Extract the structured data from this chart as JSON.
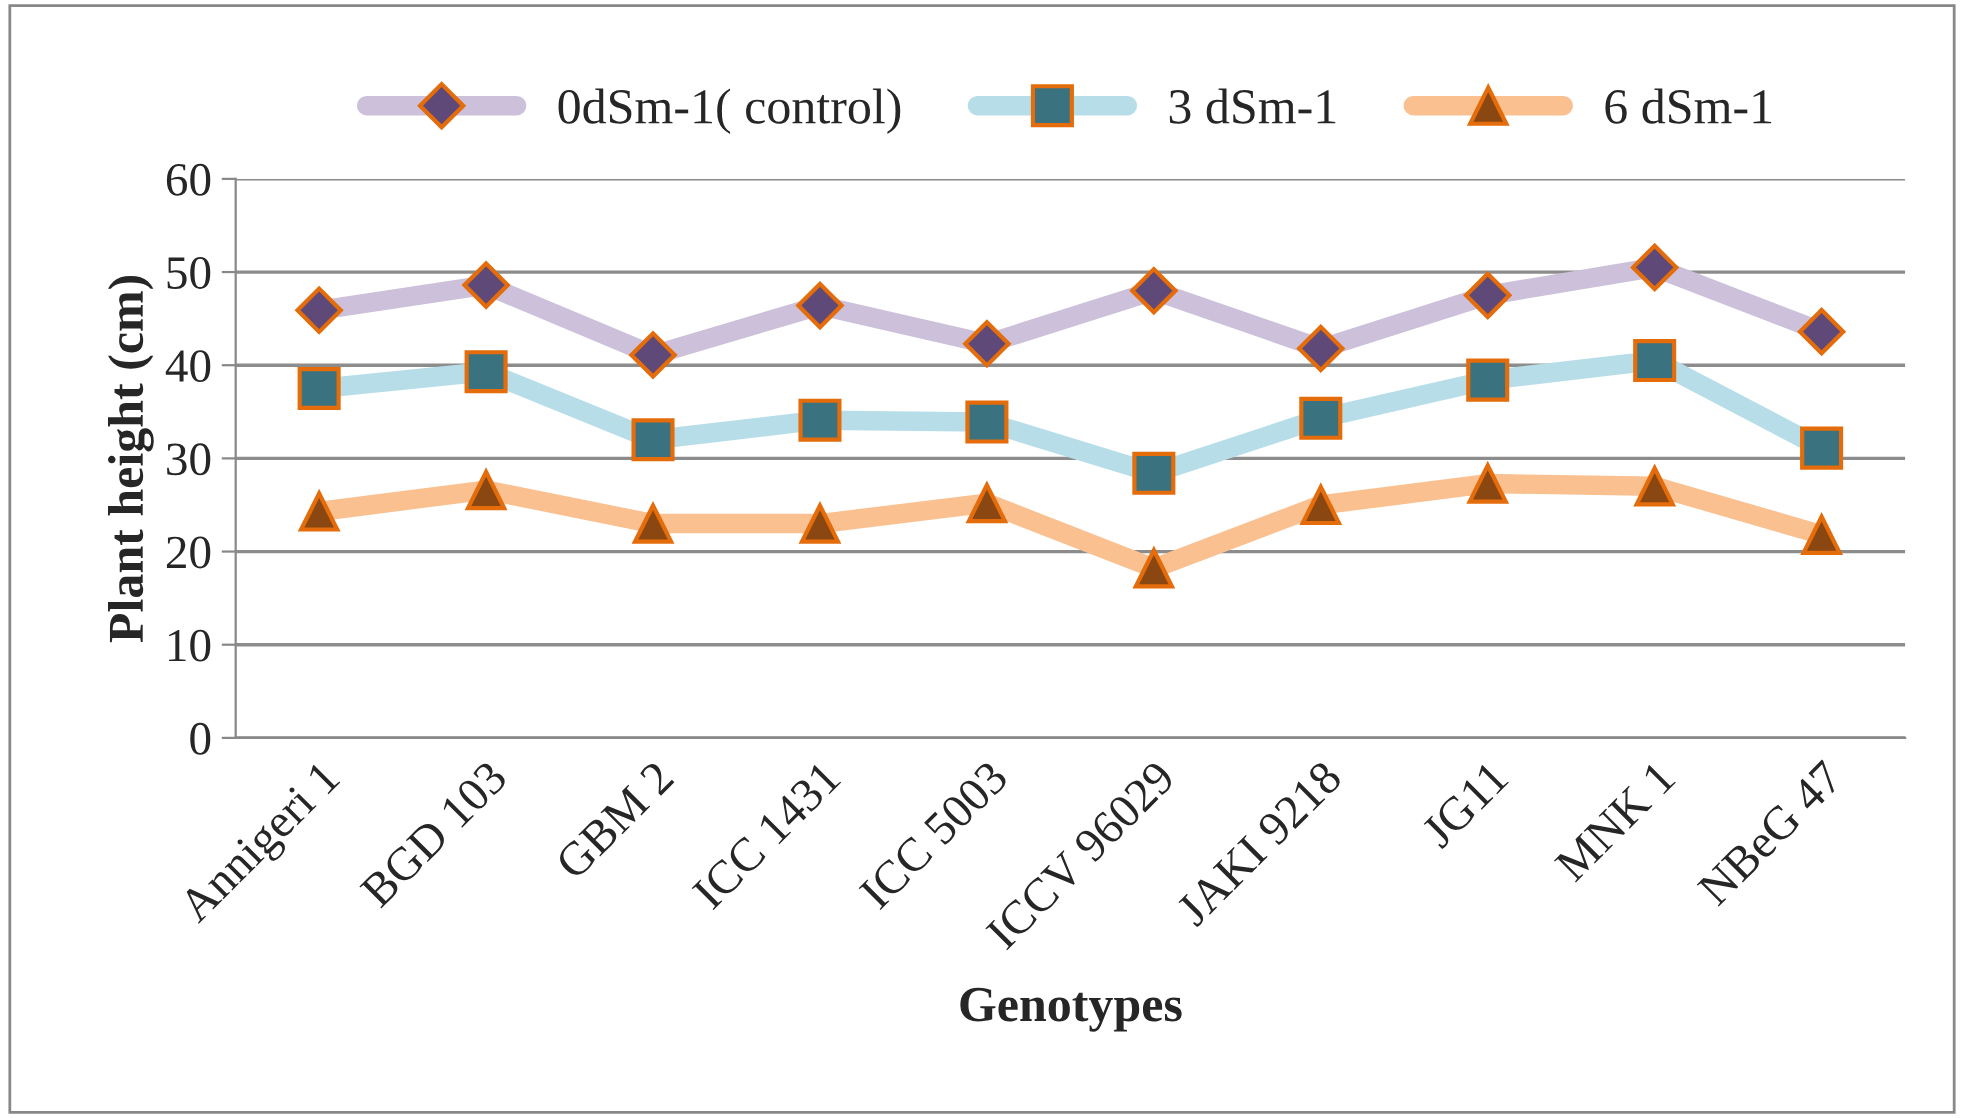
{
  "chart_data": {
    "type": "line",
    "xlabel": "Genotypes",
    "ylabel": "Plant height (cm)",
    "categories": [
      "Annigeri 1",
      "BGD 103",
      "GBM 2",
      "ICC 1431",
      "ICC 5003",
      "ICCV 96029",
      "JAKI 9218",
      "JG11",
      "MNK 1",
      "NBeG 47"
    ],
    "series": [
      {
        "name": "0dSm-1( control)",
        "color": "#ccc0da",
        "marker": "diamond",
        "values": [
          45.9,
          48.6,
          41.1,
          46.4,
          42.3,
          48.0,
          41.8,
          47.5,
          50.5,
          43.6
        ]
      },
      {
        "name": "3 dSm-1",
        "color": "#b7dee8",
        "marker": "square",
        "values": [
          37.5,
          39.3,
          32.0,
          34.1,
          33.9,
          28.4,
          34.3,
          38.4,
          40.5,
          31.1
        ]
      },
      {
        "name": "6 dSm-1",
        "color": "#fac090",
        "marker": "triangle",
        "values": [
          24.3,
          26.6,
          23.0,
          23.0,
          25.2,
          18.2,
          25.0,
          27.3,
          27.0,
          21.8
        ]
      }
    ],
    "ylim": [
      0,
      60
    ],
    "yticks": [
      0,
      10,
      20,
      30,
      40,
      50,
      60
    ],
    "grid": "y",
    "legend": "top"
  }
}
